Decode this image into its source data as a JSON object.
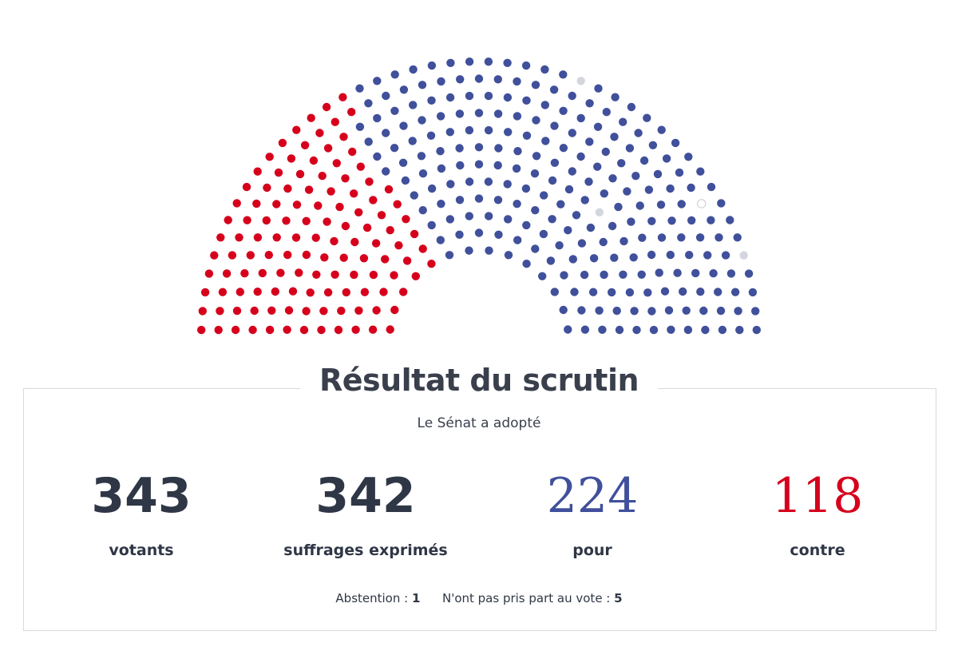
{
  "chart_data": {
    "type": "parliament",
    "colors": {
      "pour": "#40509b",
      "contre": "#d6001c",
      "abstention": "#d3d6dc",
      "non_votant": "#ffffff"
    },
    "seats_by_color": {
      "contre_left_count": 118,
      "pour_count": 224,
      "abstention_count": 1,
      "non_votants_count": 5
    }
  },
  "result": {
    "title": "Résultat du scrutin",
    "subtitle": "Le Sénat a adopté",
    "stats": [
      {
        "value": "343",
        "label": "votants"
      },
      {
        "value": "342",
        "label": "suffrages exprimés"
      },
      {
        "value": "224",
        "label": "pour"
      },
      {
        "value": "118",
        "label": "contre"
      }
    ],
    "footnote": {
      "abstention_label": "Abstention :",
      "abstention_value": "1",
      "non_pris_part_label": "N'ont pas pris part au vote :",
      "non_pris_part_value": "5"
    }
  }
}
